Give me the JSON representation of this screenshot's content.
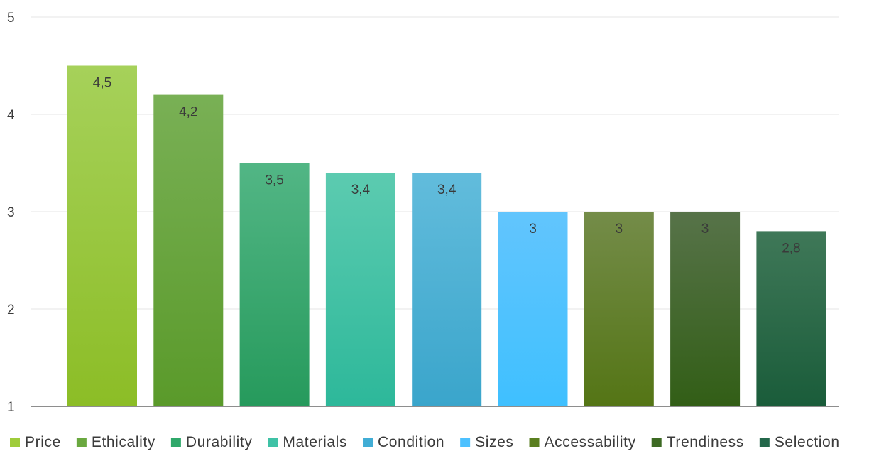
{
  "chart_data": {
    "type": "bar",
    "title": "",
    "xlabel": "",
    "ylabel": "",
    "categories": [
      "Price",
      "Ethicality",
      "Durability",
      "Materials",
      "Condition",
      "Sizes",
      "Accessability",
      "Trendiness",
      "Selection"
    ],
    "values": [
      4.5,
      4.2,
      3.5,
      3.4,
      3.4,
      3,
      3,
      3,
      2.8
    ],
    "data_labels": [
      "4,5",
      "4,2",
      "3,5",
      "3,4",
      "3,4",
      "3",
      "3",
      "3",
      "2,8"
    ],
    "ylim": [
      1,
      5
    ],
    "yticks": [
      1,
      2,
      3,
      4,
      5
    ],
    "ytick_labels": [
      "1",
      "2",
      "3",
      "4",
      "5"
    ],
    "grid": true,
    "legend_position": "bottom",
    "colors": [
      {
        "top": "#a6d15a",
        "bottom": "#8cbd26"
      },
      {
        "top": "#79b055",
        "bottom": "#5a9a2a"
      },
      {
        "top": "#52b685",
        "bottom": "#269a5c"
      },
      {
        "top": "#5ccbb0",
        "bottom": "#2db89a"
      },
      {
        "top": "#62bcdc",
        "bottom": "#3aa5cb"
      },
      {
        "top": "#62c5fd",
        "bottom": "#3fc0ff"
      },
      {
        "top": "#748c49",
        "bottom": "#547515"
      },
      {
        "top": "#577349",
        "bottom": "#325e16"
      },
      {
        "top": "#3f7858",
        "bottom": "#1a5c3a"
      }
    ],
    "legend_colors": [
      "#9fcc3b",
      "#6aa83f",
      "#2fa86a",
      "#3fc2a6",
      "#41add5",
      "#4dc1ff",
      "#5a7f1f",
      "#3d6a23",
      "#23674a"
    ]
  }
}
